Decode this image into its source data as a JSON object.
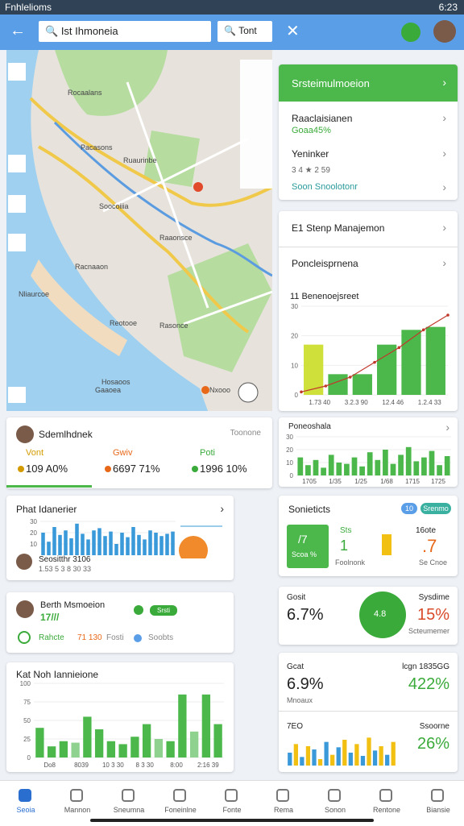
{
  "status": {
    "left": "Fnhlelioms",
    "time": "6:23"
  },
  "appbar": {
    "search": "Ist Ihmoneia",
    "button": "Tont"
  },
  "map": {
    "labels": [
      "Rocaalans",
      "Pacasons",
      "Ruaurinbe",
      "Soocoiiia",
      "Raaonsce",
      "Nliaurcoe",
      "Racnaaon",
      "Reotooe",
      "Rasonce",
      "Hosaoos",
      "Gaaoea",
      "Nxooo"
    ]
  },
  "side_card": {
    "title": "Srsteimulmoeion",
    "rows": [
      {
        "label": "Raaclaisianen",
        "sub": "Goaa45%"
      },
      {
        "label": "Yeninker",
        "sub": "3 4 ★ 2 59"
      }
    ],
    "link": "Soon Snoolotonr"
  },
  "step_card": {
    "title": "E1 Stenp Manajemon",
    "subtitle": "Poncleisprnena",
    "chart": {
      "title": "11 Benenoejsreet",
      "ylim": [
        0,
        30
      ],
      "yticks": [
        0,
        10,
        20,
        30
      ],
      "values": [
        17,
        7,
        7,
        17,
        22,
        23
      ],
      "colors": [
        "#cfe03a",
        "#4cb84c",
        "#4cb84c",
        "#4cb84c",
        "#4cb84c",
        "#4cb84c"
      ],
      "line": [
        1,
        3,
        6,
        11,
        16,
        22,
        27
      ],
      "line_color": "#c0392b",
      "xlabels": [
        "1.73 40",
        "3.2.3 90",
        "12.4 46",
        "1.2.4 33"
      ]
    }
  },
  "summary": {
    "title": "Sdemlhdnek",
    "link": "Toonone",
    "stats": [
      {
        "label": "Vont",
        "value": "109 A0%",
        "color": "#d49b00"
      },
      {
        "label": "Gwiv",
        "value": "6697 71%",
        "color": "#e8681a"
      },
      {
        "label": "Poti",
        "value": "1996 10%",
        "color": "#3aaa3a"
      }
    ]
  },
  "bars_card": {
    "title": "Phat Idanerier",
    "sub": "Seositthr 3106",
    "sub2": "1.53 5 3 8 30 33",
    "chart": {
      "ylim": [
        0,
        30
      ],
      "yticks": [
        10,
        20,
        30
      ],
      "values": [
        20,
        12,
        25,
        18,
        22,
        15,
        28,
        19,
        14,
        22,
        24,
        17,
        21,
        10,
        20,
        16,
        25,
        18,
        14,
        22,
        20,
        17,
        19,
        21
      ],
      "color": "#3a9ad9"
    }
  },
  "berth_card": {
    "title": "Berth Msmoeion",
    "value": "17///",
    "tag": "Srsti",
    "row": [
      "Rahcte",
      "71 130",
      "Fosti",
      "Soobts"
    ]
  },
  "green_card": {
    "title": "Kat Noh Iannieione",
    "chart": {
      "ylim": [
        0,
        100
      ],
      "yticks": [
        0,
        25,
        50,
        75,
        100
      ],
      "values": [
        40,
        15,
        22,
        20,
        55,
        38,
        22,
        18,
        28,
        45,
        25,
        22,
        85,
        35,
        85,
        45
      ],
      "colors": [
        "#4cb84c",
        "#4cb84c",
        "#4cb84c",
        "#8fd18f",
        "#4cb84c",
        "#4cb84c",
        "#4cb84c",
        "#4cb84c",
        "#4cb84c",
        "#4cb84c",
        "#8fd18f",
        "#4cb84c",
        "#4cb84c",
        "#8fd18f",
        "#4cb84c",
        "#4cb84c"
      ],
      "xlabels": [
        "Do8",
        "8039",
        "10 3 30",
        "8 3 30",
        "8:00",
        "2:16 39"
      ]
    }
  },
  "pn_card": {
    "title": "Poneoshala",
    "chart": {
      "ylim": [
        0,
        30
      ],
      "yticks": [
        0,
        10,
        20,
        30
      ],
      "values": [
        14,
        8,
        12,
        6,
        16,
        10,
        9,
        14,
        7,
        18,
        12,
        20,
        9,
        16,
        22,
        11,
        14,
        19,
        8,
        15
      ],
      "color": "#4cb84c",
      "xlabels": [
        "1705",
        "1/35",
        "1/25",
        "1/68",
        "1715",
        "1725"
      ]
    }
  },
  "soc_card": {
    "title": "Sonieticts",
    "tags": [
      "10",
      "Srenmo"
    ],
    "box": [
      "/7",
      "Scoa %"
    ],
    "mid": [
      "Sts",
      "1",
      "Foolnonk"
    ],
    "right": [
      "16ote",
      ".7",
      "Se Cnoe"
    ]
  },
  "stat1": {
    "left_label": "Gosit",
    "left_value": "6.7%",
    "center": "4.8",
    "right_label": "Sysdime",
    "right_value": "15%",
    "right_sub": "Scteumemer"
  },
  "stat2": {
    "left_label": "Gcat",
    "left_value": "6.9%",
    "left_sub": "Mnoaux",
    "right_label": "lcgn 1835GG",
    "right_value": "422%",
    "label3": "7EO",
    "label4": "Ssoorne",
    "value4": "26%",
    "chart": {
      "ylim": [
        0,
        30
      ],
      "values": [
        12,
        20,
        8,
        18,
        15,
        6,
        22,
        10,
        17,
        24,
        12,
        20,
        9,
        26,
        14,
        18,
        10,
        22
      ],
      "colors": [
        "#3a9ad9",
        "#f2c012"
      ]
    }
  },
  "nav": [
    "Seoia",
    "Mannon",
    "Sneumna",
    "Foneinlne",
    "Fonte",
    "Rema",
    "Sonon",
    "Rentone",
    "Biansie"
  ]
}
